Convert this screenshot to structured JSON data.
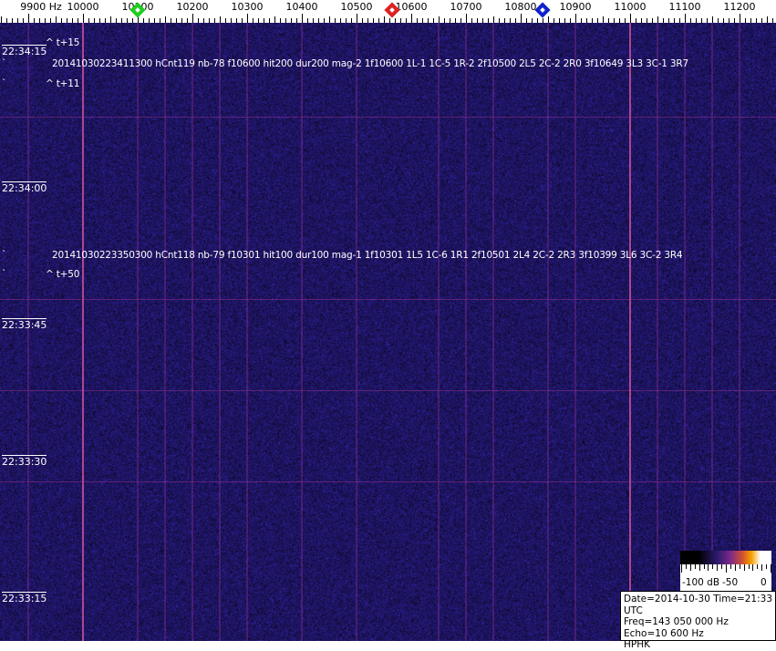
{
  "chart_data": {
    "type": "heatmap",
    "subtype": "spectrogram waterfall",
    "x_unit": "Hz",
    "x_ticks": [
      "9900 Hz",
      "10000",
      "10100",
      "10200",
      "10300",
      "10400",
      "10500",
      "10600",
      "10700",
      "10800",
      "10900",
      "11000",
      "11100",
      "11200"
    ],
    "x_tick_values": [
      9900,
      10000,
      10100,
      10200,
      10300,
      10400,
      10500,
      10600,
      10700,
      10800,
      10900,
      11000,
      11100,
      11200
    ],
    "xlim": [
      9848,
      11267
    ],
    "y_ticks": [
      "22:34:15",
      "22:34:00",
      "22:33:45",
      "22:33:30",
      "22:33:15"
    ],
    "ylim": [
      "22:34:18",
      "22:33:10"
    ],
    "markers": [
      {
        "freq": 10100,
        "color": "#22cc22"
      },
      {
        "freq": 10565,
        "color": "#dd2222"
      },
      {
        "freq": 10840,
        "color": "#1122cc"
      }
    ],
    "strong_lines_hz": [
      10000,
      11000
    ],
    "weak_lines_hz": [
      9900,
      10100,
      10150,
      10200,
      10250,
      10300,
      10400,
      10500,
      10650,
      10700,
      10750,
      10850,
      10900,
      11050,
      11100,
      11150,
      11200
    ],
    "horizontal_lines_time": [
      "22:34:08",
      "22:33:48",
      "22:33:38",
      "22:33:28"
    ],
    "background_color": "#1c1258",
    "line_color": "#c04a9a"
  },
  "annotations": [
    {
      "mark": "^ t+15"
    },
    {
      "text": "20141030223411300 hCnt119 nb-78 f10600 hit200 dur200 mag-2 1f10600 1L-1 1C-5 1R-2 2f10500 2L5 2C-2 2R0 3f10649 3L3 3C-1 3R7"
    },
    {
      "mark": "^ t+11"
    },
    {
      "text": "20141030223350300 hCnt118 nb-79 f10301 hit100 dur100 mag-1 1f10301 1L5 1C-6 1R1 2f10501 2L4 2C-2 2R3 3f10399 3L6 3C-2 3R4"
    },
    {
      "mark": "^ t+50"
    }
  ],
  "backtick": "`",
  "colorbar": {
    "labels": [
      "-100 dB",
      "-50",
      "0"
    ]
  },
  "info": {
    "line1": "Date=2014-10-30 Time=21:33 UTC",
    "line2": "Freq=143 050 000 Hz",
    "line3": "Echo=10 600 Hz",
    "line4": "HPHK"
  }
}
